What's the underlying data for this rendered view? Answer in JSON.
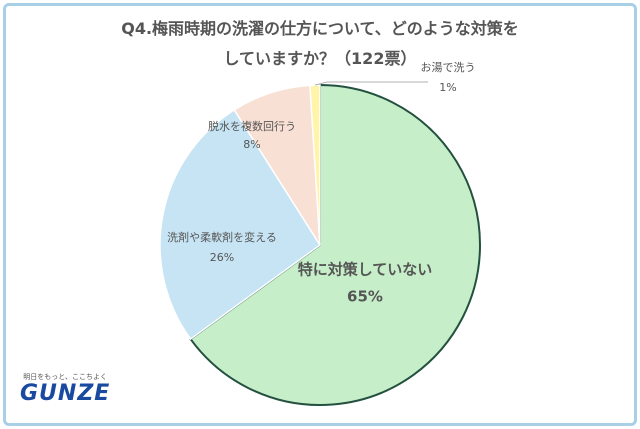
{
  "chart_data": {
    "type": "pie",
    "title": "Q4.梅雨時期の洗濯の仕方について、どのような対策をしていますか？（122票）",
    "categories": [
      "特に対策していない",
      "洗剤や柔軟剤を変える",
      "脱水を複数回行う",
      "お湯で洗う"
    ],
    "values": [
      65,
      26,
      8,
      1
    ],
    "value_labels": [
      "65%",
      "26%",
      "8%",
      "1%"
    ],
    "colors": [
      "#c6efc9",
      "#c6e4f4",
      "#f9e0d4",
      "#fff4a8"
    ]
  },
  "logo": {
    "tagline": "明日をもっと、ここちよく",
    "name": "GUNZE"
  }
}
